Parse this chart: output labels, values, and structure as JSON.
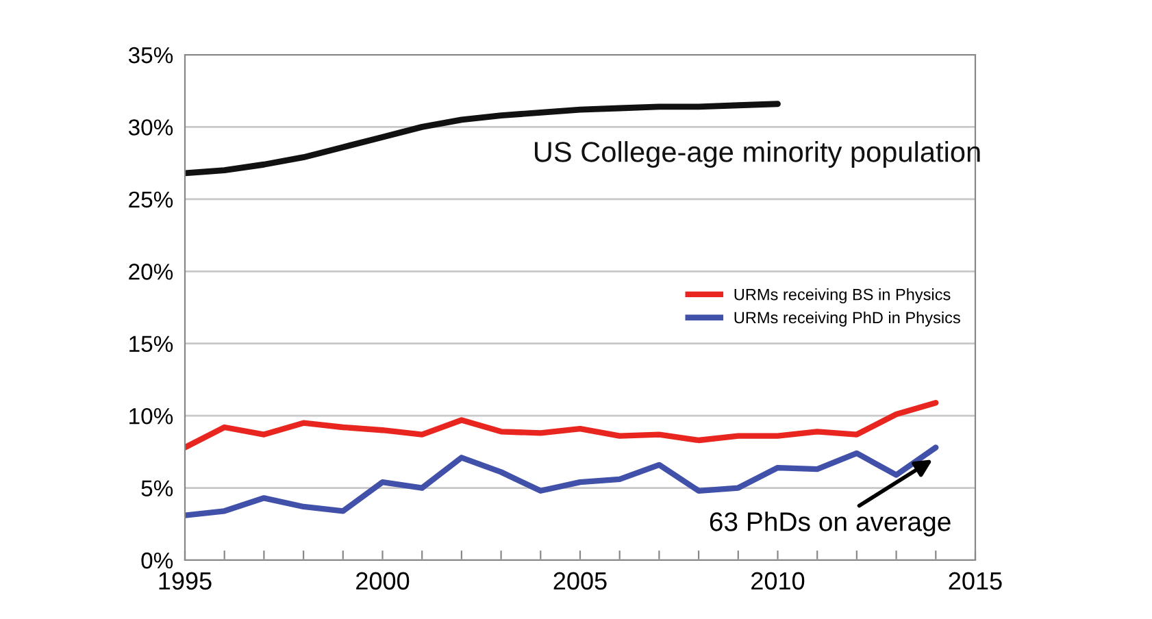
{
  "chart_data": {
    "type": "line",
    "x": [
      1995,
      1996,
      1997,
      1998,
      1999,
      2000,
      2001,
      2002,
      2003,
      2004,
      2005,
      2006,
      2007,
      2008,
      2009,
      2010,
      2011,
      2012,
      2013,
      2014
    ],
    "series": [
      {
        "name": "US College-age minority population",
        "color": "#111111",
        "x": [
          1995,
          1996,
          1997,
          1998,
          1999,
          2000,
          2001,
          2002,
          2003,
          2004,
          2005,
          2006,
          2007,
          2008,
          2009,
          2010
        ],
        "values": [
          26.8,
          27.0,
          27.4,
          27.9,
          28.6,
          29.3,
          30.0,
          30.5,
          30.8,
          31.0,
          31.2,
          31.3,
          31.4,
          31.4,
          31.5,
          31.6
        ]
      },
      {
        "name": "URMs receiving BS in Physics",
        "color": "#e8251f",
        "values": [
          7.8,
          9.2,
          8.7,
          9.5,
          9.2,
          9.0,
          8.7,
          9.7,
          8.9,
          8.8,
          9.1,
          8.6,
          8.7,
          8.3,
          8.6,
          8.6,
          8.9,
          8.7,
          10.1,
          10.9
        ]
      },
      {
        "name": "URMs receiving PhD in Physics",
        "color": "#4150a8",
        "values": [
          3.1,
          3.4,
          4.3,
          3.7,
          3.4,
          5.4,
          5.0,
          7.1,
          6.1,
          4.8,
          5.4,
          5.6,
          6.6,
          4.8,
          5.0,
          6.4,
          6.3,
          7.4,
          5.9,
          7.8
        ]
      }
    ],
    "xlim": [
      1995,
      2015
    ],
    "xticks": [
      1995,
      {
        "value": 1996,
        "label": null
      },
      {
        "value": 1997,
        "label": null
      },
      {
        "value": 1998,
        "label": null
      },
      {
        "value": 1999,
        "label": null
      },
      2000,
      {
        "value": 2001,
        "label": null
      },
      {
        "value": 2002,
        "label": null
      },
      {
        "value": 2003,
        "label": null
      },
      {
        "value": 2004,
        "label": null
      },
      2005,
      {
        "value": 2006,
        "label": null
      },
      {
        "value": 2007,
        "label": null
      },
      {
        "value": 2008,
        "label": null
      },
      {
        "value": 2009,
        "label": null
      },
      2010,
      {
        "value": 2011,
        "label": null
      },
      {
        "value": 2012,
        "label": null
      },
      {
        "value": 2013,
        "label": null
      },
      {
        "value": 2014,
        "label": null
      },
      2015
    ],
    "ylim": [
      0,
      35
    ],
    "yticks": [
      {
        "value": 0,
        "label": "0%"
      },
      {
        "value": 5,
        "label": "5%"
      },
      {
        "value": 10,
        "label": "10%"
      },
      {
        "value": 15,
        "label": "15%"
      },
      {
        "value": 20,
        "label": "20%"
      },
      {
        "value": 25,
        "label": "25%"
      },
      {
        "value": 30,
        "label": "30%"
      },
      {
        "value": 35,
        "label": "35%"
      }
    ],
    "grid": "y",
    "legend": "center right",
    "marker": "none",
    "line_style": "solid",
    "annotations": [
      {
        "text": "63 PhDs on average",
        "x": 2014,
        "y": 7.8
      }
    ]
  }
}
